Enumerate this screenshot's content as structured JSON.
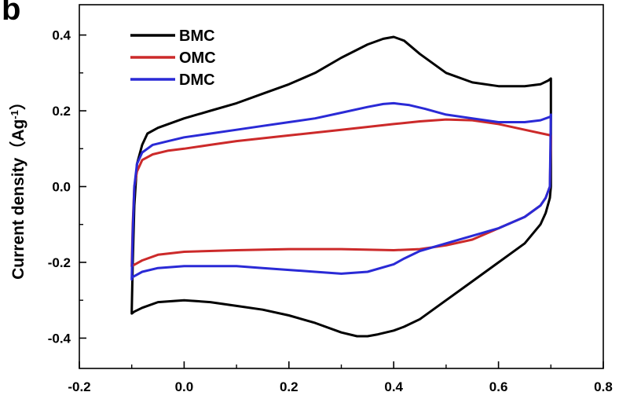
{
  "panel_label": "b",
  "chart_data": {
    "type": "line",
    "title": "",
    "xlabel": "",
    "ylabel": "Current density（Ag",
    "ylabel_superscript": "-1",
    "ylabel_suffix": "）",
    "xlim": [
      -0.2,
      0.8
    ],
    "ylim": [
      -0.48,
      0.48
    ],
    "x_ticks": [
      -0.2,
      0.0,
      0.2,
      0.4,
      0.6,
      0.8
    ],
    "x_tick_labels": [
      "-0.2",
      "0.0",
      "0.2",
      "0.4",
      "0.6",
      "0.8"
    ],
    "y_ticks": [
      -0.4,
      -0.2,
      0.0,
      0.2,
      0.4
    ],
    "y_tick_labels": [
      "-0.4",
      "-0.2",
      "0.0",
      "0.2",
      "0.4"
    ],
    "grid": false,
    "legend_position": "top-left",
    "series": [
      {
        "name": "BMC",
        "color": "#000000",
        "x": [
          -0.1,
          -0.098,
          -0.095,
          -0.09,
          -0.08,
          -0.07,
          -0.05,
          0.0,
          0.05,
          0.1,
          0.15,
          0.2,
          0.25,
          0.3,
          0.35,
          0.38,
          0.4,
          0.42,
          0.45,
          0.5,
          0.55,
          0.6,
          0.65,
          0.68,
          0.695,
          0.7,
          0.7,
          0.7,
          0.698,
          0.69,
          0.68,
          0.65,
          0.6,
          0.55,
          0.5,
          0.45,
          0.42,
          0.4,
          0.37,
          0.35,
          0.33,
          0.3,
          0.25,
          0.2,
          0.15,
          0.1,
          0.05,
          0.0,
          -0.05,
          -0.08,
          -0.095,
          -0.1,
          -0.1
        ],
        "y": [
          -0.33,
          -0.2,
          -0.05,
          0.06,
          0.11,
          0.14,
          0.155,
          0.18,
          0.2,
          0.22,
          0.245,
          0.27,
          0.3,
          0.34,
          0.375,
          0.39,
          0.395,
          0.385,
          0.35,
          0.3,
          0.275,
          0.265,
          0.265,
          0.27,
          0.28,
          0.285,
          0.2,
          0.0,
          -0.03,
          -0.07,
          -0.1,
          -0.15,
          -0.2,
          -0.25,
          -0.3,
          -0.35,
          -0.37,
          -0.38,
          -0.39,
          -0.395,
          -0.395,
          -0.385,
          -0.36,
          -0.34,
          -0.325,
          -0.315,
          -0.305,
          -0.3,
          -0.305,
          -0.32,
          -0.33,
          -0.335,
          -0.33
        ]
      },
      {
        "name": "OMC",
        "color": "#cc2a2a",
        "x": [
          -0.1,
          -0.098,
          -0.095,
          -0.09,
          -0.08,
          -0.06,
          -0.03,
          0.0,
          0.05,
          0.1,
          0.2,
          0.3,
          0.4,
          0.45,
          0.5,
          0.55,
          0.6,
          0.65,
          0.7,
          0.7,
          0.698,
          0.69,
          0.68,
          0.65,
          0.6,
          0.55,
          0.5,
          0.45,
          0.4,
          0.3,
          0.2,
          0.1,
          0.0,
          -0.05,
          -0.08,
          -0.1,
          -0.1
        ],
        "y": [
          -0.21,
          -0.1,
          0.0,
          0.04,
          0.07,
          0.085,
          0.095,
          0.1,
          0.11,
          0.12,
          0.135,
          0.15,
          0.165,
          0.172,
          0.177,
          0.175,
          0.165,
          0.15,
          0.135,
          0.13,
          0.0,
          -0.03,
          -0.05,
          -0.08,
          -0.11,
          -0.14,
          -0.155,
          -0.165,
          -0.168,
          -0.165,
          -0.165,
          -0.168,
          -0.172,
          -0.18,
          -0.195,
          -0.21,
          -0.21
        ]
      },
      {
        "name": "DMC",
        "color": "#2a2ad6",
        "x": [
          -0.1,
          -0.098,
          -0.095,
          -0.09,
          -0.08,
          -0.06,
          -0.03,
          0.0,
          0.05,
          0.1,
          0.15,
          0.2,
          0.25,
          0.3,
          0.35,
          0.38,
          0.4,
          0.43,
          0.46,
          0.5,
          0.55,
          0.6,
          0.65,
          0.68,
          0.7,
          0.7,
          0.698,
          0.69,
          0.68,
          0.65,
          0.6,
          0.55,
          0.5,
          0.45,
          0.42,
          0.4,
          0.35,
          0.3,
          0.25,
          0.2,
          0.15,
          0.1,
          0.05,
          0.0,
          -0.05,
          -0.08,
          -0.1,
          -0.1
        ],
        "y": [
          -0.245,
          -0.12,
          0.0,
          0.06,
          0.09,
          0.11,
          0.12,
          0.13,
          0.14,
          0.15,
          0.16,
          0.17,
          0.18,
          0.195,
          0.21,
          0.218,
          0.22,
          0.215,
          0.205,
          0.19,
          0.18,
          0.17,
          0.17,
          0.175,
          0.185,
          0.19,
          0.0,
          -0.03,
          -0.05,
          -0.08,
          -0.11,
          -0.13,
          -0.15,
          -0.17,
          -0.19,
          -0.205,
          -0.225,
          -0.23,
          -0.225,
          -0.22,
          -0.215,
          -0.21,
          -0.21,
          -0.21,
          -0.215,
          -0.225,
          -0.24,
          -0.245
        ]
      }
    ]
  }
}
